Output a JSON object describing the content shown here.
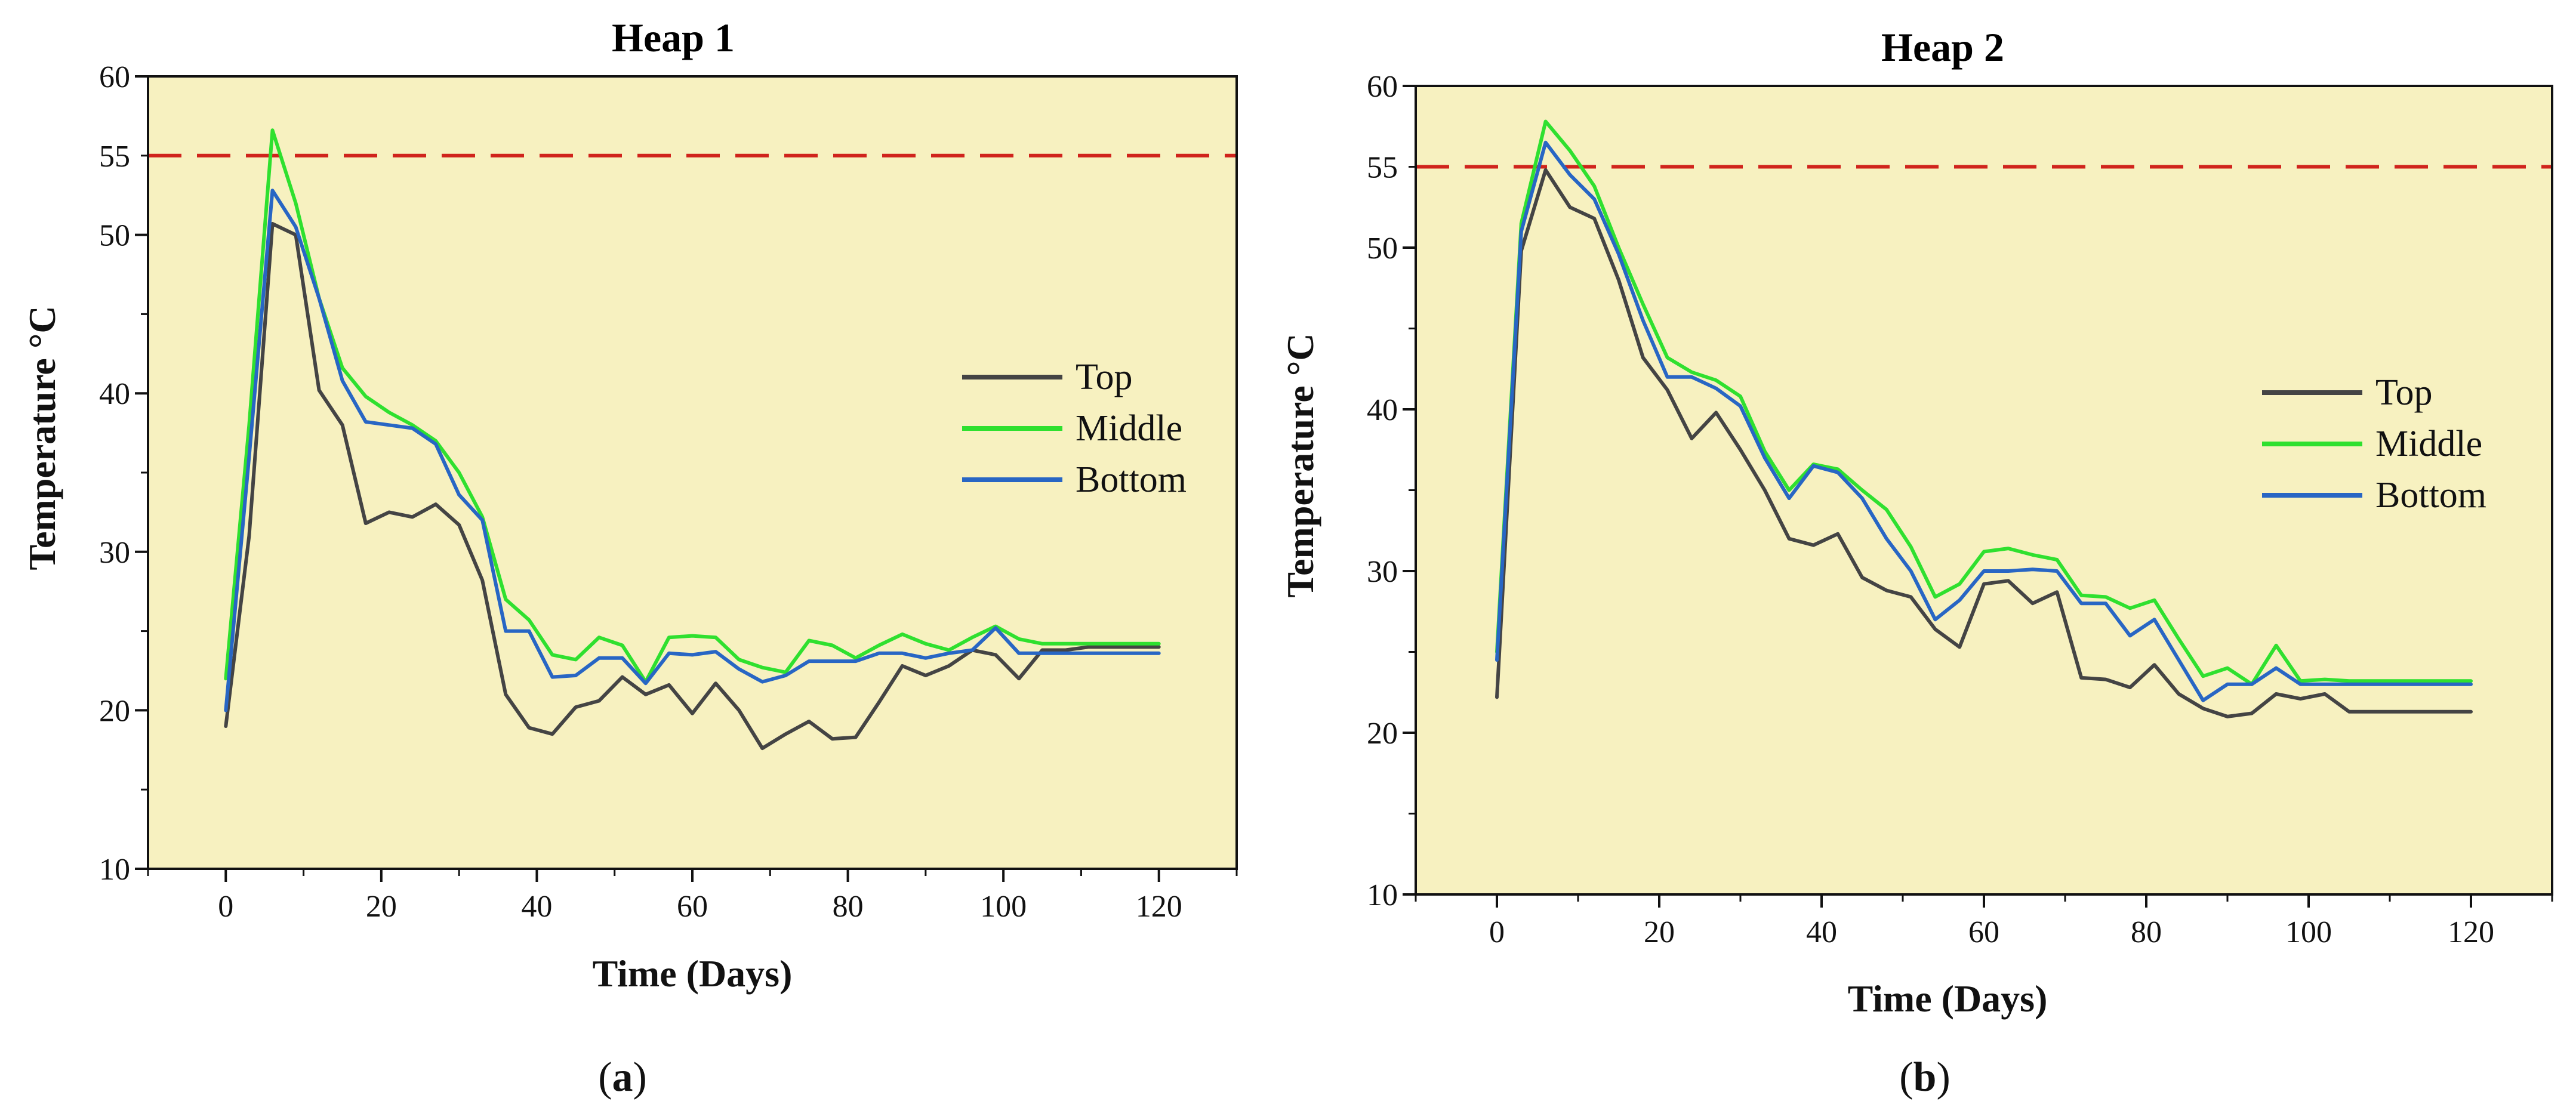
{
  "chart_data": [
    {
      "type": "line",
      "panel_label": "a",
      "title": "Heap 1",
      "xlabel": "Time (Days)",
      "ylabel": "Temperature °C",
      "xlim": [
        -10,
        130
      ],
      "ylim": [
        10,
        60
      ],
      "xticks": [
        0,
        20,
        40,
        60,
        80,
        100,
        120
      ],
      "yticks": [
        10,
        20,
        30,
        40,
        50,
        60
      ],
      "extra_ytick": 55,
      "background": "#f7f1c0",
      "threshold": {
        "value": 55,
        "color": "#d0241c",
        "style": "dashed"
      },
      "legend_position": "center-right",
      "series": [
        {
          "name": "Top",
          "color": "#444444",
          "x": [
            0,
            3,
            6,
            9,
            12,
            15,
            18,
            21,
            24,
            27,
            30,
            33,
            36,
            39,
            42,
            45,
            48,
            51,
            54,
            57,
            60,
            63,
            66,
            69,
            72,
            75,
            78,
            81,
            84,
            87,
            90,
            93,
            96,
            99,
            102,
            105,
            108,
            111,
            114,
            117,
            120
          ],
          "y": [
            19,
            31,
            50.7,
            50,
            40.2,
            38,
            31.8,
            32.5,
            32.2,
            33,
            31.7,
            28.2,
            21,
            18.9,
            18.5,
            20.2,
            20.6,
            22.1,
            21,
            21.6,
            19.8,
            21.7,
            20,
            17.6,
            18.5,
            19.3,
            18.2,
            18.3,
            20.5,
            22.8,
            22.2,
            22.8,
            23.8,
            23.5,
            22,
            23.8,
            23.8,
            24,
            24,
            24,
            24
          ]
        },
        {
          "name": "Middle",
          "color": "#2fe02f",
          "x": [
            0,
            3,
            6,
            9,
            12,
            15,
            18,
            21,
            24,
            27,
            30,
            33,
            36,
            39,
            42,
            45,
            48,
            51,
            54,
            57,
            60,
            63,
            66,
            69,
            72,
            75,
            78,
            81,
            84,
            87,
            90,
            93,
            96,
            99,
            102,
            105,
            108,
            111,
            114,
            117,
            120
          ],
          "y": [
            22,
            38,
            56.6,
            52,
            46,
            41.6,
            39.8,
            38.8,
            38,
            37,
            35,
            32.2,
            27,
            25.7,
            23.5,
            23.2,
            24.6,
            24.1,
            21.8,
            24.6,
            24.7,
            24.6,
            23.2,
            22.7,
            22.4,
            24.4,
            24.1,
            23.3,
            24.1,
            24.8,
            24.2,
            23.8,
            24.6,
            25.3,
            24.5,
            24.2,
            24.2,
            24.2,
            24.2,
            24.2,
            24.2
          ]
        },
        {
          "name": "Bottom",
          "color": "#2866c4",
          "x": [
            0,
            3,
            6,
            9,
            12,
            15,
            18,
            21,
            24,
            27,
            30,
            33,
            36,
            39,
            42,
            45,
            48,
            51,
            54,
            57,
            60,
            63,
            66,
            69,
            72,
            75,
            78,
            81,
            84,
            87,
            90,
            93,
            96,
            99,
            102,
            105,
            108,
            111,
            114,
            117,
            120
          ],
          "y": [
            20,
            36,
            52.8,
            50.5,
            46,
            40.8,
            38.2,
            38,
            37.8,
            36.8,
            33.6,
            32,
            25,
            25,
            22.1,
            22.2,
            23.3,
            23.3,
            21.7,
            23.6,
            23.5,
            23.7,
            22.6,
            21.8,
            22.2,
            23.1,
            23.1,
            23.1,
            23.6,
            23.6,
            23.3,
            23.6,
            23.8,
            25.2,
            23.6,
            23.6,
            23.6,
            23.6,
            23.6,
            23.6,
            23.6
          ]
        }
      ]
    },
    {
      "type": "line",
      "panel_label": "b",
      "title": "Heap 2",
      "xlabel": "Time (Days)",
      "ylabel": "Temperature °C",
      "xlim": [
        -10,
        130
      ],
      "ylim": [
        10,
        60
      ],
      "xticks": [
        0,
        20,
        40,
        60,
        80,
        100,
        120
      ],
      "yticks": [
        10,
        20,
        30,
        40,
        50,
        60
      ],
      "extra_ytick": 55,
      "background": "#f7f1c0",
      "threshold": {
        "value": 55,
        "color": "#d0241c",
        "style": "dashed"
      },
      "legend_position": "center-right",
      "series": [
        {
          "name": "Top",
          "color": "#444444",
          "x": [
            0,
            3,
            6,
            9,
            12,
            15,
            18,
            21,
            24,
            27,
            30,
            33,
            36,
            39,
            42,
            45,
            48,
            51,
            54,
            57,
            60,
            63,
            66,
            69,
            72,
            75,
            78,
            81,
            84,
            87,
            90,
            93,
            96,
            99,
            102,
            105,
            108,
            111,
            114,
            117,
            120
          ],
          "y": [
            22.2,
            49.8,
            54.8,
            52.5,
            51.8,
            48,
            43.2,
            41.2,
            38.2,
            39.8,
            37.5,
            35,
            32,
            31.6,
            32.3,
            29.6,
            28.8,
            28.4,
            26.4,
            25.3,
            29.2,
            29.4,
            28,
            28.7,
            23.4,
            23.3,
            22.8,
            24.2,
            22.4,
            21.5,
            21,
            21.2,
            22.4,
            22.1,
            22.4,
            21.3,
            21.3,
            21.3,
            21.3,
            21.3,
            21.3
          ]
        },
        {
          "name": "Middle",
          "color": "#2fe02f",
          "x": [
            0,
            3,
            6,
            9,
            12,
            15,
            18,
            21,
            24,
            27,
            30,
            33,
            36,
            39,
            42,
            45,
            48,
            51,
            54,
            57,
            60,
            63,
            66,
            69,
            72,
            75,
            78,
            81,
            84,
            87,
            90,
            93,
            96,
            99,
            102,
            105,
            108,
            111,
            114,
            117,
            120
          ],
          "y": [
            25,
            51.5,
            57.8,
            56,
            53.8,
            50,
            46.5,
            43.2,
            42.3,
            41.8,
            40.8,
            37.4,
            35,
            36.6,
            36.3,
            35,
            33.8,
            31.5,
            28.4,
            29.2,
            31.2,
            31.4,
            31,
            30.7,
            28.5,
            28.4,
            27.7,
            28.2,
            25.8,
            23.5,
            24,
            23,
            25.4,
            23.2,
            23.3,
            23.2,
            23.2,
            23.2,
            23.2,
            23.2,
            23.2
          ]
        },
        {
          "name": "Bottom",
          "color": "#2866c4",
          "x": [
            0,
            3,
            6,
            9,
            12,
            15,
            18,
            21,
            24,
            27,
            30,
            33,
            36,
            39,
            42,
            45,
            48,
            51,
            54,
            57,
            60,
            63,
            66,
            69,
            72,
            75,
            78,
            81,
            84,
            87,
            90,
            93,
            96,
            99,
            102,
            105,
            108,
            111,
            114,
            117,
            120
          ],
          "y": [
            24.5,
            51,
            56.5,
            54.5,
            53,
            49.6,
            45.5,
            42,
            42,
            41.3,
            40.2,
            37,
            34.5,
            36.5,
            36.1,
            34.5,
            32,
            30,
            27,
            28.2,
            30,
            30,
            30.1,
            30,
            28,
            28,
            26,
            27,
            24.5,
            22,
            23,
            23,
            24,
            23,
            23,
            23,
            23,
            23,
            23,
            23,
            23
          ]
        }
      ]
    }
  ]
}
